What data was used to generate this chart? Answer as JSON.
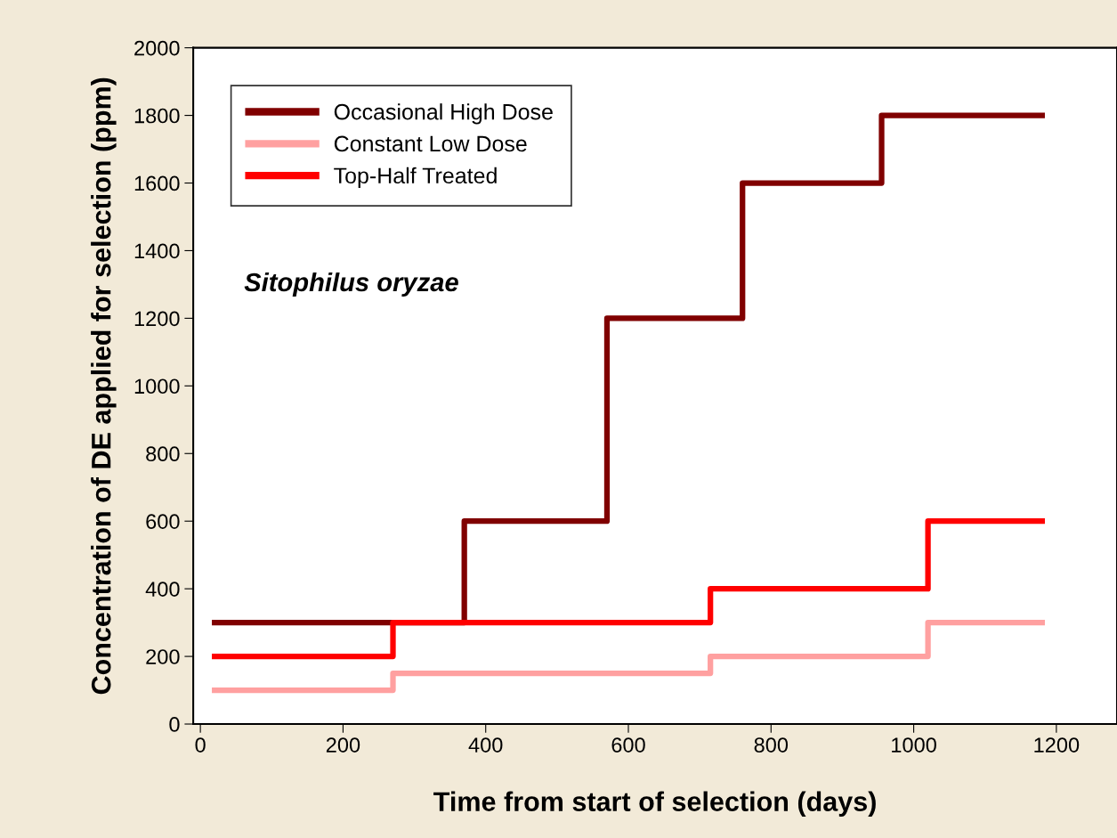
{
  "chart_data": {
    "type": "step",
    "xlabel": "Time from start of selection (days)",
    "ylabel": "Concentration of DE applied for selection (ppm)",
    "series": [
      {
        "name": "Occasional High Dose",
        "color": "#800000",
        "x": [
          20,
          370,
          570,
          760,
          955,
          1180
        ],
        "values": [
          300,
          600,
          1200,
          1600,
          1800,
          1800
        ]
      },
      {
        "name": "Constant Low Dose",
        "color": "#ffa0a0",
        "x": [
          20,
          270,
          715,
          1020,
          1180
        ],
        "values": [
          100,
          150,
          200,
          300,
          300
        ]
      },
      {
        "name": "Top-Half Treated",
        "color": "#ff0000",
        "x": [
          20,
          270,
          715,
          1020,
          1180
        ],
        "values": [
          200,
          300,
          400,
          600,
          600
        ]
      }
    ],
    "annotations": [
      "Sitophilus oryzae"
    ],
    "xlim": [
      -10,
      1285
    ],
    "ylim": [
      0,
      2000
    ],
    "xticks": [
      0,
      200,
      400,
      600,
      800,
      1000,
      1200
    ],
    "yticks": [
      0,
      200,
      400,
      600,
      800,
      1000,
      1200,
      1400,
      1600,
      1800,
      2000
    ],
    "legend": "top left",
    "grid": false,
    "line_style": "solid"
  }
}
